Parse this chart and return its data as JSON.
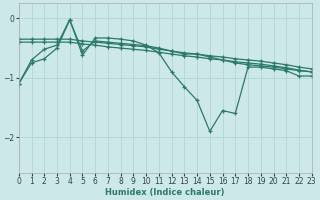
{
  "xlabel": "Humidex (Indice chaleur)",
  "xlim": [
    0,
    23
  ],
  "ylim": [
    -2.6,
    0.25
  ],
  "yticks": [
    0,
    -1,
    -2
  ],
  "xticks": [
    0,
    1,
    2,
    3,
    4,
    5,
    6,
    7,
    8,
    9,
    10,
    11,
    12,
    13,
    14,
    15,
    16,
    17,
    18,
    19,
    20,
    21,
    22,
    23
  ],
  "bg_color": "#cde8e8",
  "line_color": "#2a7a6a",
  "grid_color": "#b8d8d8",
  "series": [
    {
      "x": [
        0,
        1,
        2,
        3,
        4,
        5,
        6,
        7,
        8,
        9,
        10,
        11,
        12,
        13,
        14,
        15,
        16,
        17,
        18,
        19,
        20,
        21,
        22,
        23
      ],
      "y": [
        -0.35,
        -0.35,
        -0.35,
        -0.35,
        -0.35,
        -0.38,
        -0.4,
        -0.42,
        -0.44,
        -0.46,
        -0.48,
        -0.52,
        -0.55,
        -0.58,
        -0.6,
        -0.63,
        -0.65,
        -0.68,
        -0.7,
        -0.72,
        -0.75,
        -0.78,
        -0.82,
        -0.85
      ]
    },
    {
      "x": [
        0,
        1,
        2,
        3,
        4,
        5,
        6,
        7,
        8,
        9,
        10,
        11,
        12,
        13,
        14,
        15,
        16,
        17,
        18,
        19,
        20,
        21,
        22,
        23
      ],
      "y": [
        -0.4,
        -0.4,
        -0.4,
        -0.4,
        -0.4,
        -0.43,
        -0.45,
        -0.48,
        -0.5,
        -0.52,
        -0.54,
        -0.57,
        -0.6,
        -0.63,
        -0.65,
        -0.68,
        -0.7,
        -0.73,
        -0.75,
        -0.77,
        -0.8,
        -0.83,
        -0.87,
        -0.9
      ]
    },
    {
      "x": [
        0,
        1,
        2,
        3,
        4,
        5,
        6,
        7,
        8,
        9,
        10,
        11,
        12,
        13,
        14,
        15,
        16,
        17,
        18,
        19,
        20,
        21,
        22,
        23
      ],
      "y": [
        -1.1,
        -0.75,
        -0.68,
        -0.5,
        -0.03,
        -0.55,
        -0.38,
        -0.4,
        -0.42,
        -0.44,
        -0.46,
        -0.5,
        -0.55,
        -0.6,
        -0.6,
        -0.65,
        -0.7,
        -0.75,
        -0.78,
        -0.8,
        -0.82,
        -0.85,
        -0.88,
        -0.9
      ]
    },
    {
      "x": [
        0,
        1,
        2,
        3,
        4,
        5,
        6,
        7,
        8,
        9,
        10,
        11,
        12,
        13,
        14,
        15,
        16,
        17,
        18,
        19,
        20,
        21,
        22,
        23
      ],
      "y": [
        -1.1,
        -0.7,
        -0.52,
        -0.45,
        -0.02,
        -0.62,
        -0.33,
        -0.33,
        -0.35,
        -0.38,
        -0.45,
        -0.58,
        -0.9,
        -1.15,
        -1.38,
        -1.9,
        -1.55,
        -1.6,
        -0.82,
        -0.82,
        -0.85,
        -0.88,
        -0.97,
        -0.97
      ]
    }
  ]
}
